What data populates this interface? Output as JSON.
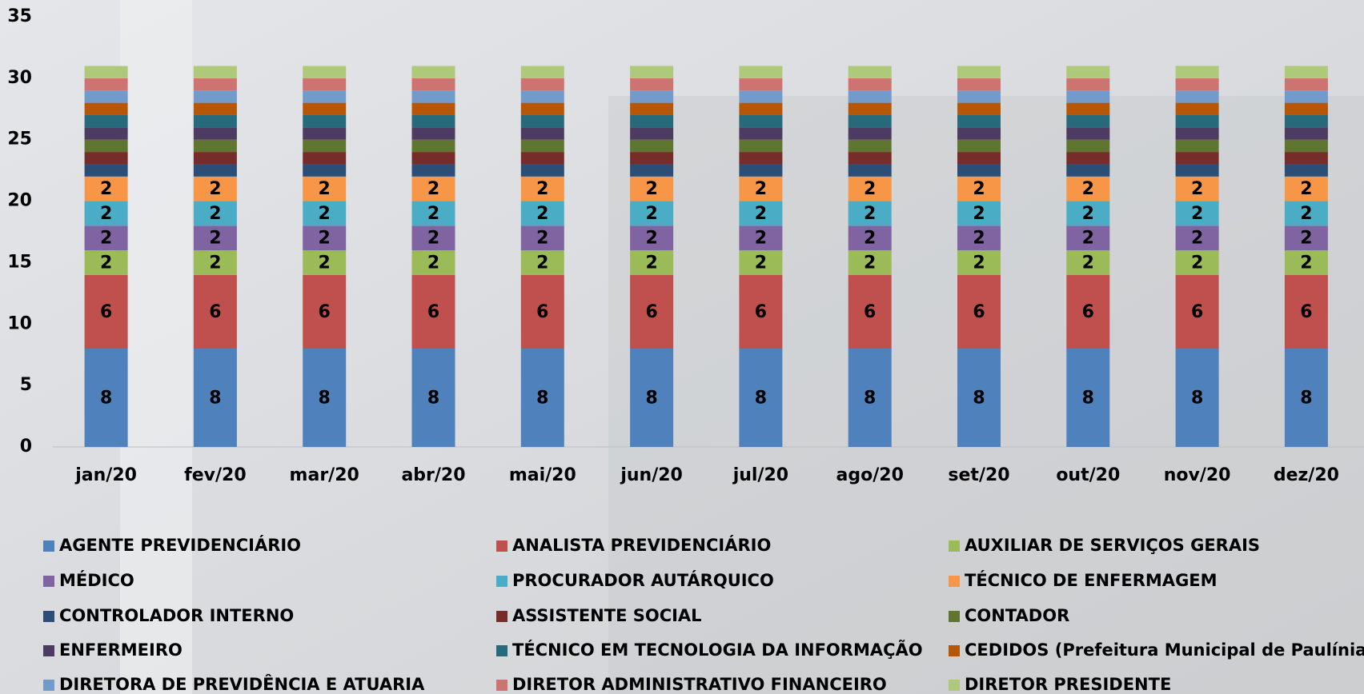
{
  "chart_data": {
    "type": "bar",
    "stacked": true,
    "categories": [
      "jan/20",
      "fev/20",
      "mar/20",
      "abr/20",
      "mai/20",
      "jun/20",
      "jul/20",
      "ago/20",
      "set/20",
      "out/20",
      "nov/20",
      "dez/20"
    ],
    "ylim": [
      0,
      35
    ],
    "yticks": [
      0,
      5,
      10,
      15,
      20,
      25,
      30,
      35
    ],
    "grid": false,
    "series": [
      {
        "name": "AGENTE PREVIDENCIÁRIO",
        "color": "#4f81bd",
        "data_labels": true,
        "values": [
          8,
          8,
          8,
          8,
          8,
          8,
          8,
          8,
          8,
          8,
          8,
          8
        ]
      },
      {
        "name": "ANALISTA PREVIDENCIÁRIO",
        "color": "#c0504d",
        "data_labels": true,
        "values": [
          6,
          6,
          6,
          6,
          6,
          6,
          6,
          6,
          6,
          6,
          6,
          6
        ]
      },
      {
        "name": "AUXILIAR DE SERVIÇOS GERAIS",
        "color": "#9bbb59",
        "data_labels": true,
        "values": [
          2,
          2,
          2,
          2,
          2,
          2,
          2,
          2,
          2,
          2,
          2,
          2
        ]
      },
      {
        "name": "MÉDICO",
        "color": "#8064a2",
        "data_labels": true,
        "values": [
          2,
          2,
          2,
          2,
          2,
          2,
          2,
          2,
          2,
          2,
          2,
          2
        ]
      },
      {
        "name": "PROCURADOR AUTÁRQUICO",
        "color": "#4bacc6",
        "data_labels": true,
        "values": [
          2,
          2,
          2,
          2,
          2,
          2,
          2,
          2,
          2,
          2,
          2,
          2
        ]
      },
      {
        "name": "TÉCNICO DE ENFERMAGEM",
        "color": "#f79646",
        "data_labels": true,
        "values": [
          2,
          2,
          2,
          2,
          2,
          2,
          2,
          2,
          2,
          2,
          2,
          2
        ]
      },
      {
        "name": "CONTROLADOR INTERNO",
        "color": "#2c4d75",
        "data_labels": false,
        "values": [
          1,
          1,
          1,
          1,
          1,
          1,
          1,
          1,
          1,
          1,
          1,
          1
        ]
      },
      {
        "name": "ASSISTENTE SOCIAL",
        "color": "#772c2a",
        "data_labels": false,
        "values": [
          1,
          1,
          1,
          1,
          1,
          1,
          1,
          1,
          1,
          1,
          1,
          1
        ]
      },
      {
        "name": "CONTADOR",
        "color": "#5f7530",
        "data_labels": false,
        "values": [
          1,
          1,
          1,
          1,
          1,
          1,
          1,
          1,
          1,
          1,
          1,
          1
        ]
      },
      {
        "name": "ENFERMEIRO",
        "color": "#4d3b62",
        "data_labels": false,
        "values": [
          1,
          1,
          1,
          1,
          1,
          1,
          1,
          1,
          1,
          1,
          1,
          1
        ]
      },
      {
        "name": "TÉCNICO EM TECNOLOGIA DA INFORMAÇÃO",
        "color": "#276a7c",
        "data_labels": false,
        "values": [
          1,
          1,
          1,
          1,
          1,
          1,
          1,
          1,
          1,
          1,
          1,
          1
        ]
      },
      {
        "name": "CEDIDOS (Prefeitura Municipal de Paulínia)",
        "color": "#b65708",
        "data_labels": false,
        "values": [
          1,
          1,
          1,
          1,
          1,
          1,
          1,
          1,
          1,
          1,
          1,
          1
        ]
      },
      {
        "name": "DIRETORA DE PREVIDÊNCIA E ATUARIA",
        "color": "#729aca",
        "data_labels": false,
        "values": [
          1,
          1,
          1,
          1,
          1,
          1,
          1,
          1,
          1,
          1,
          1,
          1
        ]
      },
      {
        "name": "DIRETOR ADMINISTRATIVO FINANCEIRO",
        "color": "#cd7371",
        "data_labels": false,
        "values": [
          1,
          1,
          1,
          1,
          1,
          1,
          1,
          1,
          1,
          1,
          1,
          1
        ]
      },
      {
        "name": "DIRETOR PRESIDENTE",
        "color": "#afc97a",
        "data_labels": false,
        "values": [
          1,
          1,
          1,
          1,
          1,
          1,
          1,
          1,
          1,
          1,
          1,
          1
        ]
      }
    ]
  }
}
